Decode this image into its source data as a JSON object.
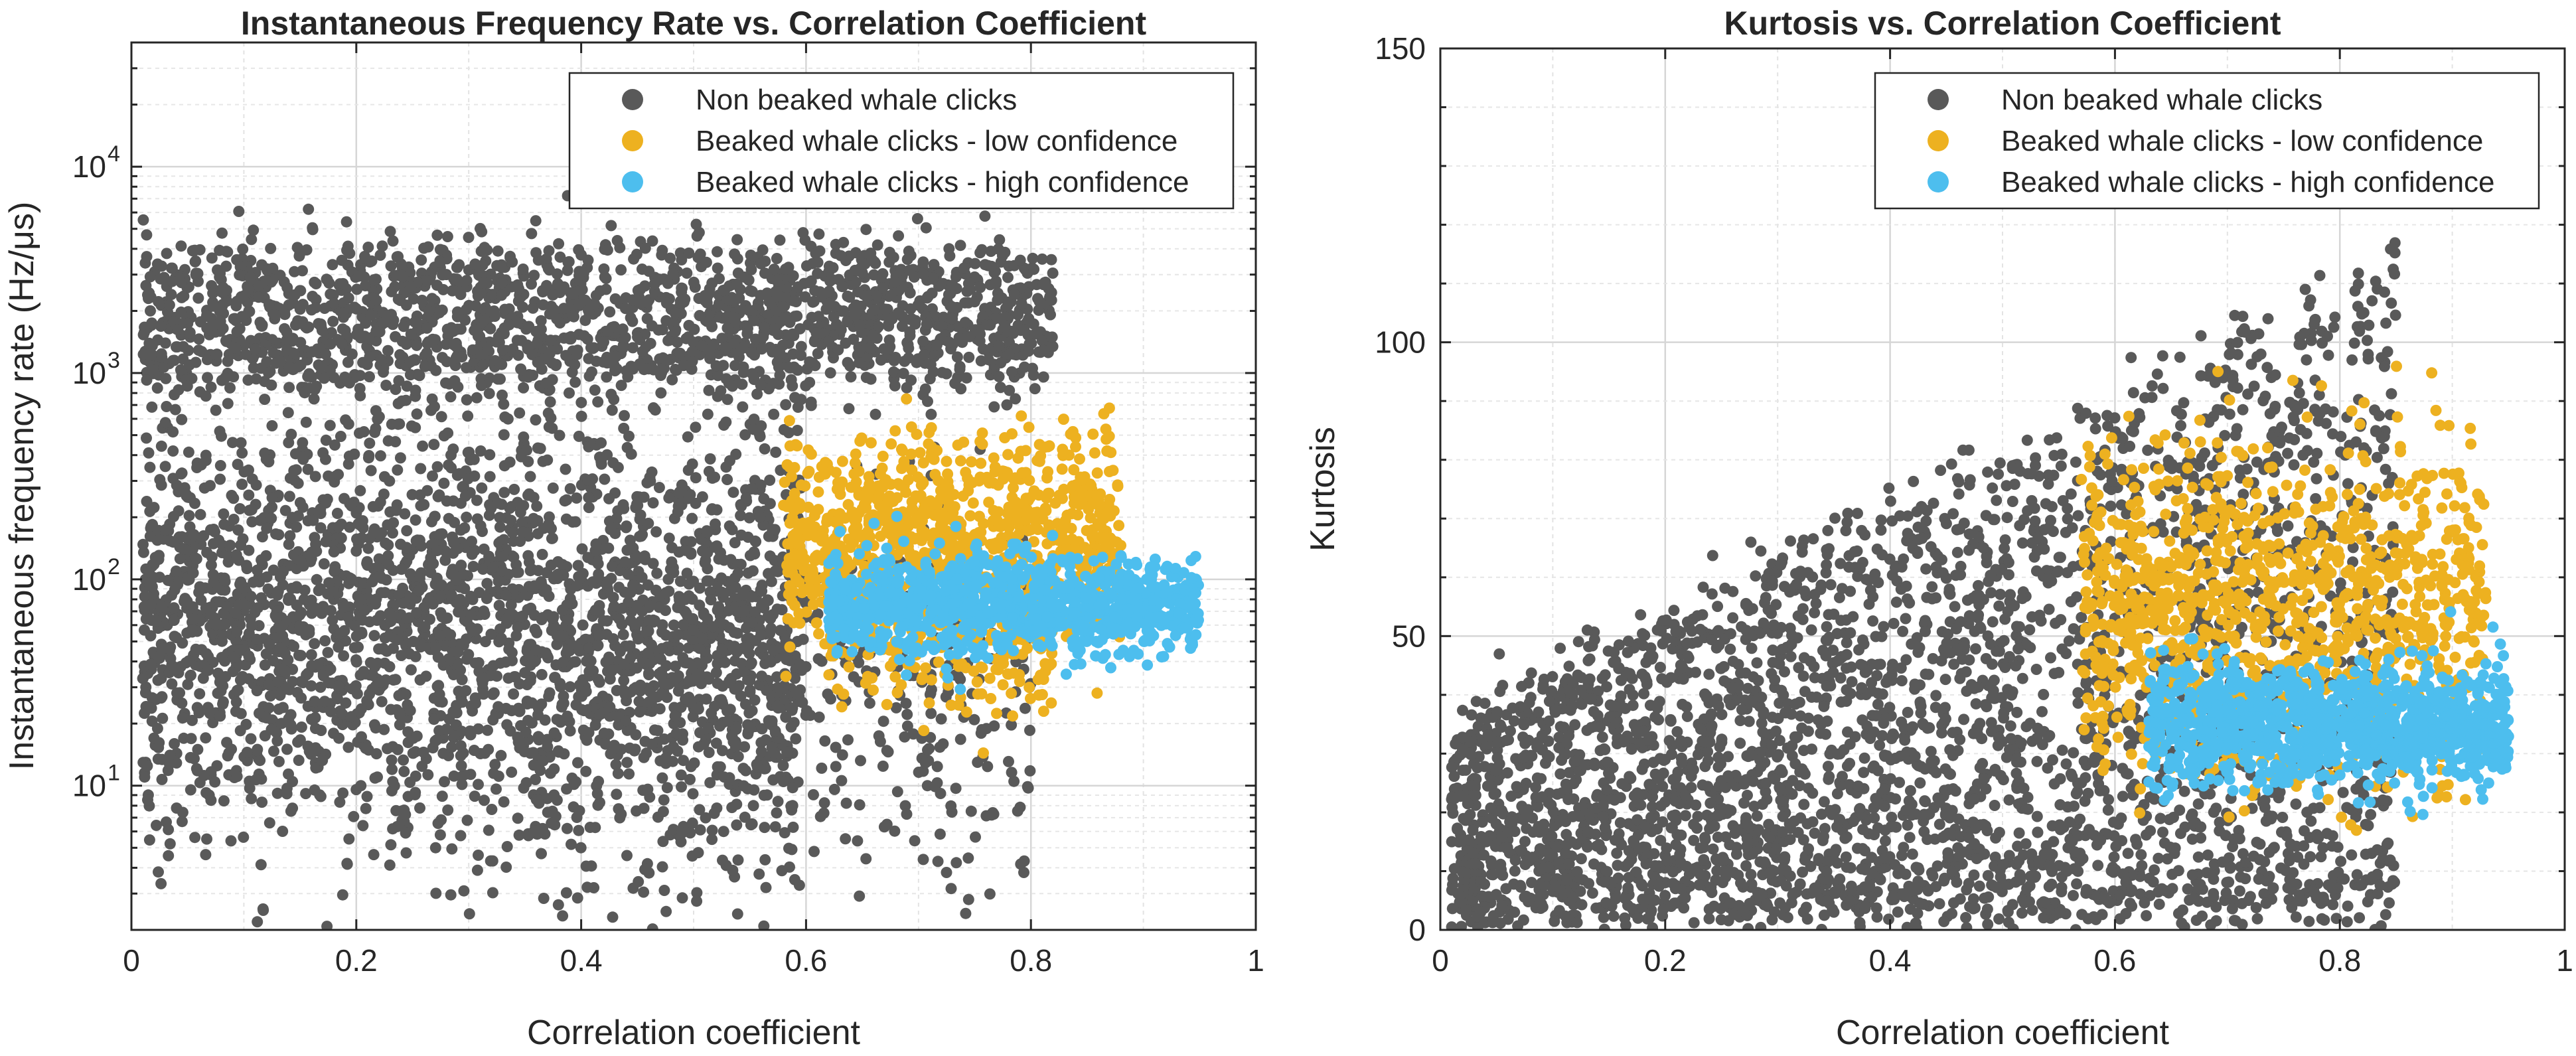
{
  "chart_data": [
    {
      "type": "scatter",
      "title": "Instantaneous Frequency Rate vs. Correlation Coefficient",
      "xlabel": "Correlation coefficient",
      "ylabel": "Instantaneous frequency rate (Hz/μs)",
      "yscale": "log",
      "xlim": [
        0,
        1
      ],
      "ylim": [
        2,
        40000
      ],
      "x_ticks": [
        0,
        0.2,
        0.4,
        0.6,
        0.8,
        1
      ],
      "x_tick_labels": [
        "0",
        "0.2",
        "0.4",
        "0.6",
        "0.8",
        "1"
      ],
      "y_ticks": [
        10,
        100,
        1000,
        10000
      ],
      "y_tick_labels": [
        {
          "base": "10",
          "exp": "1"
        },
        {
          "base": "10",
          "exp": "2"
        },
        {
          "base": "10",
          "exp": "3"
        },
        {
          "base": "10",
          "exp": "4"
        }
      ],
      "grid": true,
      "legend_position": "top-right",
      "series": [
        {
          "name": "Non beaked whale clicks",
          "color": "#595959",
          "clusters": [
            {
              "x_range": [
                0.01,
                0.82
              ],
              "y_center": 2600,
              "y_spread": 0.12,
              "n": 900
            },
            {
              "x_range": [
                0.01,
                0.82
              ],
              "y_center": 1300,
              "y_spread": 0.12,
              "n": 900
            },
            {
              "x_range": [
                0.01,
                0.6
              ],
              "y_center": 60,
              "y_spread": 0.55,
              "n": 2600
            },
            {
              "x_range": [
                0.35,
                0.8
              ],
              "y_center": 25,
              "y_spread": 0.45,
              "n": 500
            }
          ]
        },
        {
          "name": "Beaked whale clicks - low confidence",
          "color": "#EDB120",
          "clusters": [
            {
              "x_range": [
                0.58,
                0.88
              ],
              "y_center": 150,
              "y_spread": 0.25,
              "n": 1000
            },
            {
              "x_range": [
                0.62,
                0.82
              ],
              "y_center": 50,
              "y_spread": 0.2,
              "n": 180
            }
          ]
        },
        {
          "name": "Beaked whale clicks - high confidence",
          "color": "#4DBEEE",
          "clusters": [
            {
              "x_range": [
                0.62,
                0.95
              ],
              "y_center": 75,
              "y_spread": 0.12,
              "n": 1000
            }
          ]
        }
      ]
    },
    {
      "type": "scatter",
      "title": "Kurtosis vs. Correlation Coefficient",
      "xlabel": "Correlation coefficient",
      "ylabel": "Kurtosis",
      "yscale": "linear",
      "xlim": [
        0,
        1
      ],
      "ylim": [
        0,
        150
      ],
      "x_ticks": [
        0,
        0.2,
        0.4,
        0.6,
        0.8,
        1
      ],
      "x_tick_labels": [
        "0",
        "0.2",
        "0.4",
        "0.6",
        "0.8",
        "1"
      ],
      "y_ticks": [
        0,
        50,
        100,
        150
      ],
      "y_tick_labels": [
        "0",
        "50",
        "100",
        "150"
      ],
      "grid": true,
      "legend_position": "top-right",
      "series": [
        {
          "name": "Non beaked whale clicks",
          "color": "#595959",
          "clusters": [
            {
              "x_range": [
                0.01,
                0.85
              ],
              "y_min": 3,
              "y_max": 115,
              "shape": "wedge",
              "n": 3500
            }
          ]
        },
        {
          "name": "Beaked whale clicks - low confidence",
          "color": "#EDB120",
          "clusters": [
            {
              "x_range": [
                0.57,
                0.93
              ],
              "y_center": 55,
              "y_spread": 14,
              "n": 1100
            }
          ]
        },
        {
          "name": "Beaked whale clicks - high confidence",
          "color": "#4DBEEE",
          "clusters": [
            {
              "x_range": [
                0.63,
                0.95
              ],
              "y_center": 35,
              "y_spread": 5,
              "n": 1100
            }
          ]
        }
      ]
    }
  ]
}
